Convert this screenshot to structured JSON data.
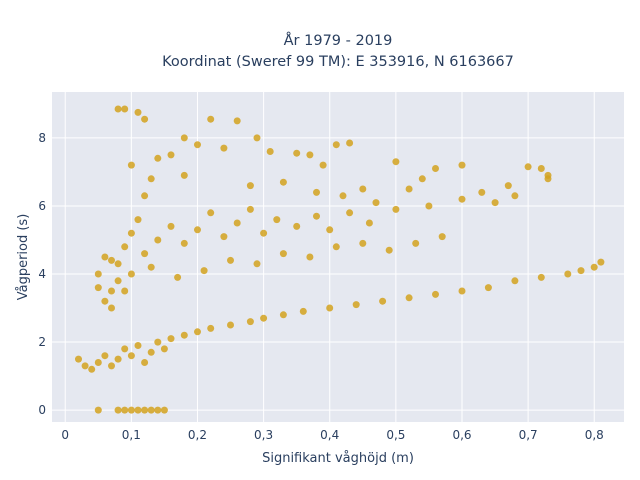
{
  "chart_data": {
    "type": "scatter",
    "title_line1": "År 1979 - 2019",
    "title_line2": "Koordinat (Sweref 99 TM): E 353916, N 6163667",
    "xlabel": "Signifikant våghöjd (m)",
    "ylabel": "Vågperiod (s)",
    "xlim": [
      -0.02,
      0.845
    ],
    "ylim": [
      -0.35,
      9.35
    ],
    "x_ticks": [
      0,
      0.1,
      0.2,
      0.3,
      0.4,
      0.5,
      0.6,
      0.7,
      0.8
    ],
    "x_tick_labels": [
      "0",
      "0,1",
      "0,2",
      "0,3",
      "0,4",
      "0,5",
      "0,6",
      "0,7",
      "0,8"
    ],
    "y_ticks": [
      0,
      2,
      4,
      6,
      8
    ],
    "y_tick_labels": [
      "0",
      "2",
      "4",
      "6",
      "8"
    ],
    "grid": true,
    "marker_color": "#d4a21f",
    "plot_background": "#e5e8f0",
    "series": [
      {
        "points": [
          [
            0.02,
            1.5
          ],
          [
            0.03,
            1.3
          ],
          [
            0.04,
            1.2
          ],
          [
            0.05,
            1.4
          ],
          [
            0.06,
            1.6
          ],
          [
            0.07,
            1.3
          ],
          [
            0.08,
            1.5
          ],
          [
            0.09,
            1.8
          ],
          [
            0.1,
            1.6
          ],
          [
            0.11,
            1.9
          ],
          [
            0.12,
            1.4
          ],
          [
            0.13,
            1.7
          ],
          [
            0.14,
            2.0
          ],
          [
            0.15,
            1.8
          ],
          [
            0.16,
            2.1
          ],
          [
            0.18,
            2.2
          ],
          [
            0.2,
            2.3
          ],
          [
            0.22,
            2.4
          ],
          [
            0.25,
            2.5
          ],
          [
            0.28,
            2.6
          ],
          [
            0.3,
            2.7
          ],
          [
            0.33,
            2.8
          ],
          [
            0.36,
            2.9
          ],
          [
            0.4,
            3.0
          ],
          [
            0.44,
            3.1
          ],
          [
            0.48,
            3.2
          ],
          [
            0.52,
            3.3
          ],
          [
            0.56,
            3.4
          ],
          [
            0.6,
            3.5
          ],
          [
            0.64,
            3.6
          ],
          [
            0.68,
            3.8
          ],
          [
            0.72,
            3.9
          ],
          [
            0.76,
            4.0
          ],
          [
            0.78,
            4.1
          ],
          [
            0.8,
            4.2
          ],
          [
            0.81,
            4.35
          ],
          [
            0.08,
            4.3
          ],
          [
            0.09,
            4.8
          ],
          [
            0.1,
            5.2
          ],
          [
            0.11,
            5.6
          ],
          [
            0.12,
            4.6
          ],
          [
            0.14,
            5.0
          ],
          [
            0.16,
            5.4
          ],
          [
            0.18,
            4.9
          ],
          [
            0.2,
            5.3
          ],
          [
            0.22,
            5.8
          ],
          [
            0.24,
            5.1
          ],
          [
            0.26,
            5.5
          ],
          [
            0.28,
            5.9
          ],
          [
            0.3,
            5.2
          ],
          [
            0.32,
            5.6
          ],
          [
            0.35,
            5.4
          ],
          [
            0.38,
            5.7
          ],
          [
            0.4,
            5.3
          ],
          [
            0.43,
            5.8
          ],
          [
            0.46,
            5.5
          ],
          [
            0.5,
            5.9
          ],
          [
            0.55,
            6.0
          ],
          [
            0.6,
            6.2
          ],
          [
            0.65,
            6.1
          ],
          [
            0.07,
            4.4
          ],
          [
            0.08,
            3.8
          ],
          [
            0.09,
            3.5
          ],
          [
            0.1,
            4.0
          ],
          [
            0.13,
            4.2
          ],
          [
            0.17,
            3.9
          ],
          [
            0.21,
            4.1
          ],
          [
            0.25,
            4.4
          ],
          [
            0.29,
            4.3
          ],
          [
            0.33,
            4.6
          ],
          [
            0.37,
            4.5
          ],
          [
            0.41,
            4.8
          ],
          [
            0.45,
            4.9
          ],
          [
            0.49,
            4.7
          ],
          [
            0.53,
            4.9
          ],
          [
            0.57,
            5.1
          ],
          [
            0.08,
            8.85
          ],
          [
            0.09,
            8.85
          ],
          [
            0.11,
            8.75
          ],
          [
            0.12,
            8.55
          ],
          [
            0.22,
            8.55
          ],
          [
            0.26,
            8.5
          ],
          [
            0.29,
            8.0
          ],
          [
            0.18,
            8.0
          ],
          [
            0.2,
            7.8
          ],
          [
            0.24,
            7.7
          ],
          [
            0.31,
            7.6
          ],
          [
            0.35,
            7.55
          ],
          [
            0.41,
            7.8
          ],
          [
            0.43,
            7.85
          ],
          [
            0.37,
            7.5
          ],
          [
            0.39,
            7.2
          ],
          [
            0.14,
            7.4
          ],
          [
            0.16,
            7.5
          ],
          [
            0.1,
            7.2
          ],
          [
            0.5,
            7.3
          ],
          [
            0.56,
            7.1
          ],
          [
            0.6,
            7.2
          ],
          [
            0.7,
            7.15
          ],
          [
            0.72,
            7.1
          ],
          [
            0.73,
            6.9
          ],
          [
            0.73,
            6.8
          ],
          [
            0.67,
            6.6
          ],
          [
            0.68,
            6.3
          ],
          [
            0.63,
            6.4
          ],
          [
            0.54,
            6.8
          ],
          [
            0.45,
            6.5
          ],
          [
            0.52,
            6.5
          ],
          [
            0.13,
            6.8
          ],
          [
            0.12,
            6.3
          ],
          [
            0.18,
            6.9
          ],
          [
            0.28,
            6.6
          ],
          [
            0.33,
            6.7
          ],
          [
            0.38,
            6.4
          ],
          [
            0.47,
            6.1
          ],
          [
            0.42,
            6.3
          ],
          [
            0.05,
            0.0
          ],
          [
            0.08,
            0.0
          ],
          [
            0.09,
            0.0
          ],
          [
            0.1,
            0.0
          ],
          [
            0.11,
            0.0
          ],
          [
            0.12,
            0.0
          ],
          [
            0.13,
            0.0
          ],
          [
            0.14,
            0.0
          ],
          [
            0.15,
            0.0
          ],
          [
            0.05,
            3.6
          ],
          [
            0.06,
            3.2
          ],
          [
            0.07,
            3.0
          ],
          [
            0.06,
            4.5
          ],
          [
            0.05,
            4.0
          ],
          [
            0.07,
            3.5
          ]
        ]
      }
    ]
  }
}
